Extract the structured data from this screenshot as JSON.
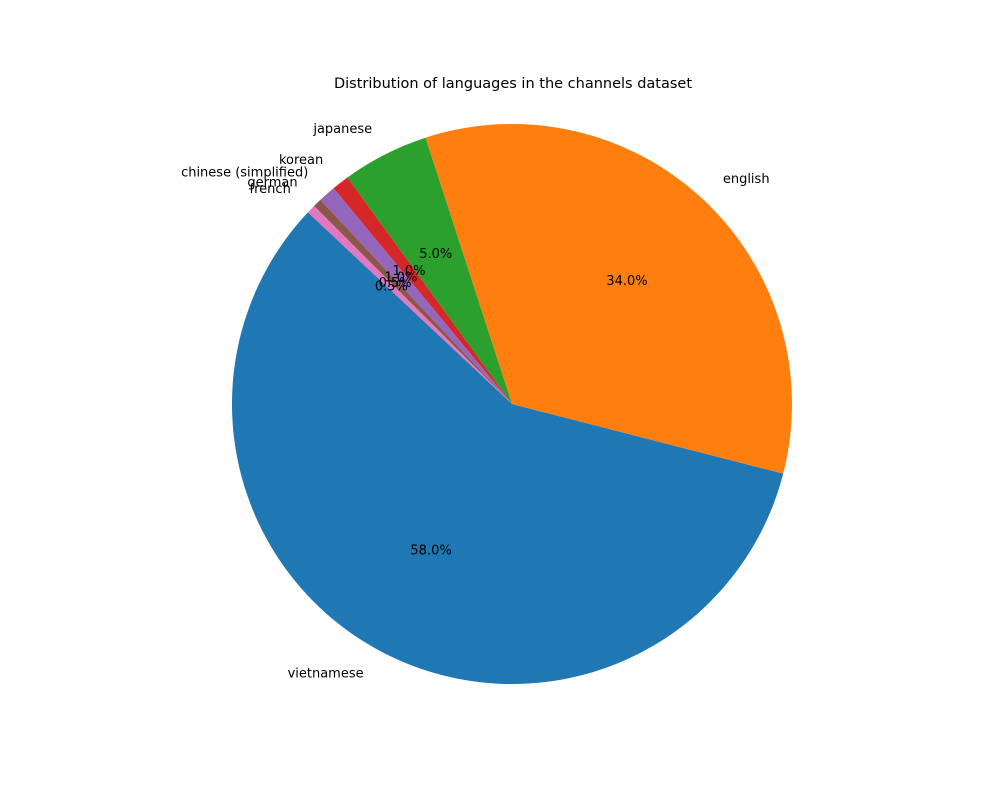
{
  "chart_data": {
    "type": "pie",
    "title": "Distribution of languages in the channels dataset",
    "categories": [
      "vietnamese",
      "english",
      "japanese",
      "korean",
      "chinese (simplified)",
      "german",
      "french"
    ],
    "values": [
      58.0,
      34.0,
      5.0,
      1.0,
      1.0,
      0.5,
      0.5
    ],
    "percent_labels": [
      "58.0%",
      "34.0%",
      "5.0%",
      "1.0%",
      "1.0%",
      "0.5%",
      "0.5%"
    ],
    "colors": [
      "#1f77b4",
      "#ff7f0e",
      "#2ca02c",
      "#d62728",
      "#9467bd",
      "#8c564b",
      "#e377c2"
    ],
    "start_angle_deg": 136.8,
    "direction": "counterclockwise",
    "legend": "none"
  }
}
